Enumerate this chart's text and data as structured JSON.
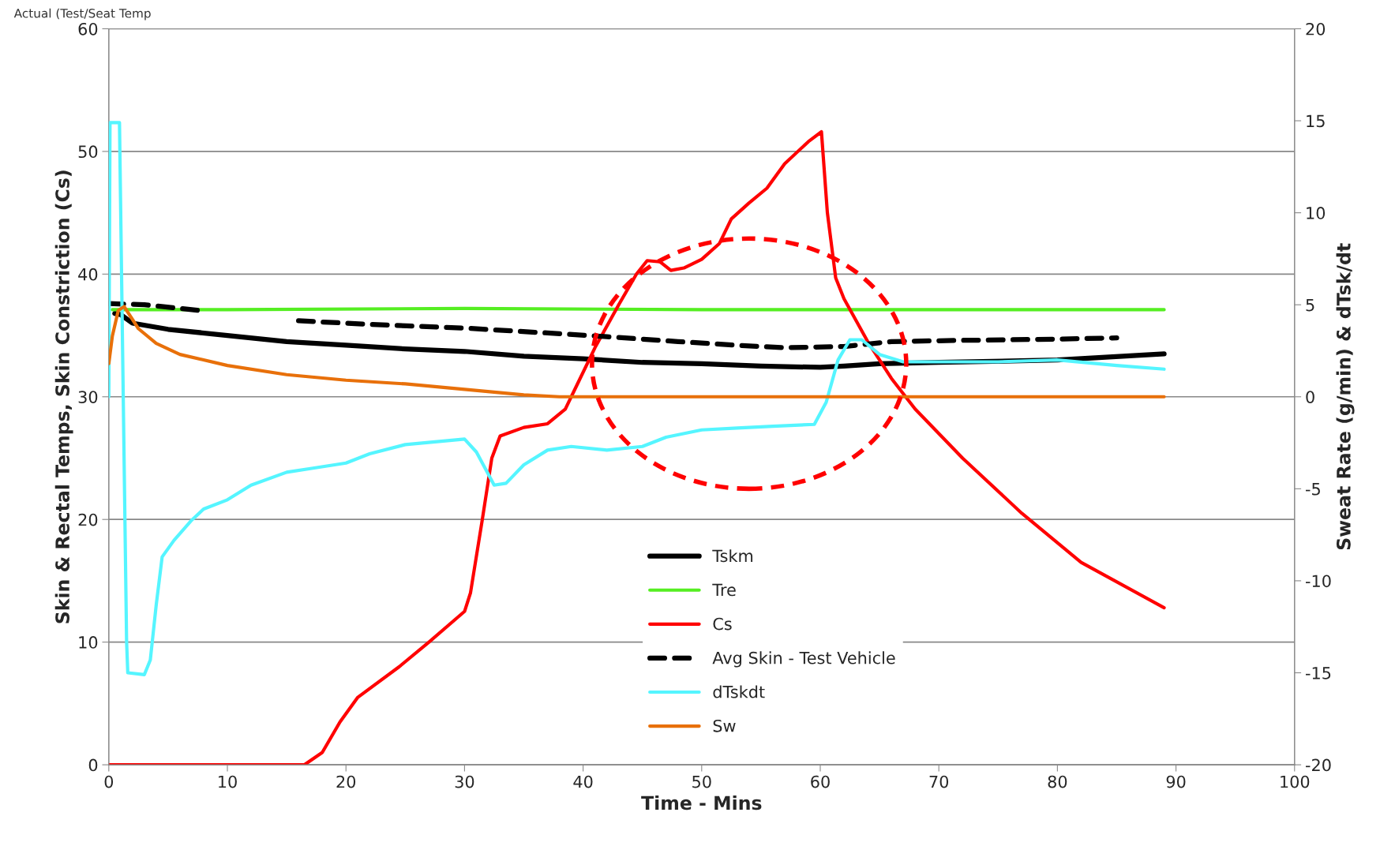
{
  "chart_data": {
    "type": "line",
    "xlabel": "Time - Mins",
    "ylabel": "Skin & Rectal Temps, Skin Constriction (Cs)",
    "y2label": "Sweat Rate (g/min) & dTsk/dt",
    "annotations": [
      "Actual (Test/Seat Temp"
    ],
    "xlim": [
      0,
      100
    ],
    "xticks": [
      0,
      10,
      20,
      30,
      40,
      50,
      60,
      70,
      80,
      90,
      100
    ],
    "ylim": [
      0,
      60
    ],
    "yticks": [
      0,
      10,
      20,
      30,
      40,
      50,
      60
    ],
    "y2lim": [
      -20,
      20
    ],
    "y2ticks": [
      -20,
      -15,
      -10,
      -5,
      0,
      5,
      10,
      15,
      20
    ],
    "grid": "y",
    "legend": "bottom",
    "marker": "none",
    "series": [
      {
        "name": "Tskm",
        "color": "#000000",
        "line_style": "solid",
        "x": [
          0.5,
          1,
          2,
          5,
          10,
          15,
          20,
          25,
          30,
          35,
          40,
          45,
          50,
          55,
          60,
          62,
          65,
          70,
          80,
          89
        ],
        "values": [
          36.8,
          36.7,
          36.0,
          35.5,
          35.0,
          34.5,
          34.2,
          33.9,
          33.7,
          33.3,
          33.1,
          32.8,
          32.7,
          32.5,
          32.4,
          32.5,
          32.7,
          32.8,
          33.0,
          33.5
        ]
      },
      {
        "name": "Tre",
        "color": "#55ee22",
        "line_style": "solid",
        "x": [
          0.3,
          10,
          30,
          50,
          70,
          89
        ],
        "values": [
          37.1,
          37.1,
          37.2,
          37.1,
          37.1,
          37.1
        ]
      },
      {
        "name": "Cs",
        "color": "#ff0000",
        "line_style": "solid",
        "x": [
          0,
          10,
          16.5,
          18,
          19.5,
          21,
          24.5,
          27,
          30,
          30.5,
          31.5,
          32.3,
          33,
          35,
          37,
          38.5,
          39.5,
          41,
          43,
          44.5,
          45.4,
          46.5,
          47.4,
          48.5,
          50,
          51.5,
          52.5,
          54,
          55.5,
          57,
          59,
          60.1,
          60.6,
          61.3,
          62,
          64,
          66,
          68,
          72,
          77,
          82,
          89
        ],
        "values": [
          0,
          0,
          0,
          1,
          3.5,
          5.5,
          8,
          10,
          12.5,
          14,
          20,
          25,
          26.8,
          27.5,
          27.8,
          29,
          31,
          34,
          37.5,
          40,
          41.1,
          41,
          40.3,
          40.5,
          41.2,
          42.5,
          44.5,
          45.8,
          47,
          49,
          50.8,
          51.6,
          45,
          39.7,
          38,
          34.5,
          31.5,
          29,
          25,
          20.5,
          16.5,
          12.8
        ]
      },
      {
        "name": "Avg Skin - Test Vehicle",
        "color": "#000000",
        "line_style": "dashed",
        "x": [
          0,
          3,
          8,
          12,
          16,
          22,
          30,
          37,
          42,
          48,
          53,
          57,
          62,
          66,
          72,
          80,
          85
        ],
        "values": [
          37.6,
          37.5,
          37.0,
          null,
          36.2,
          35.9,
          35.6,
          35.2,
          34.9,
          34.5,
          34.2,
          34.0,
          34.1,
          34.5,
          34.6,
          34.7,
          34.8
        ]
      },
      {
        "name": "dTskdt",
        "color": "#55f5ff",
        "line_style": "solid",
        "axis": "y2",
        "x": [
          0,
          0.1,
          0.9,
          1.5,
          1.6,
          3,
          3.5,
          4,
          4.5,
          5.5,
          7,
          8,
          10,
          12,
          15,
          17,
          20,
          22,
          25,
          30,
          31,
          32.5,
          33.5,
          35,
          37,
          39,
          42,
          45,
          47,
          50,
          53,
          56,
          59.5,
          60.5,
          61.5,
          62.5,
          63.5,
          65,
          67,
          70,
          75,
          80,
          85,
          89
        ],
        "values": [
          0,
          14.9,
          14.9,
          -13.3,
          -15,
          -15.1,
          -14.3,
          -11.3,
          -8.7,
          -7.8,
          -6.7,
          -6.1,
          -5.6,
          -4.8,
          -4.1,
          -3.9,
          -3.6,
          -3.1,
          -2.6,
          -2.3,
          -3,
          -4.8,
          -4.7,
          -3.7,
          -2.9,
          -2.7,
          -2.9,
          -2.7,
          -2.2,
          -1.8,
          -1.7,
          -1.6,
          -1.5,
          -0.3,
          2,
          3.1,
          3.1,
          2.3,
          1.9,
          1.9,
          1.9,
          2.0,
          1.7,
          1.5
        ]
      },
      {
        "name": "Sw",
        "color": "#e8700a",
        "line_style": "solid",
        "axis": "y2",
        "x": [
          0,
          0.3,
          0.8,
          1.3,
          2.5,
          4,
          6,
          10,
          15,
          20,
          25,
          30,
          35,
          38,
          50,
          70,
          89
        ],
        "values": [
          1.8,
          3.3,
          4.7,
          4.9,
          3.7,
          2.9,
          2.3,
          1.7,
          1.2,
          0.9,
          0.7,
          0.4,
          0.1,
          0,
          0,
          0,
          0
        ]
      }
    ]
  }
}
